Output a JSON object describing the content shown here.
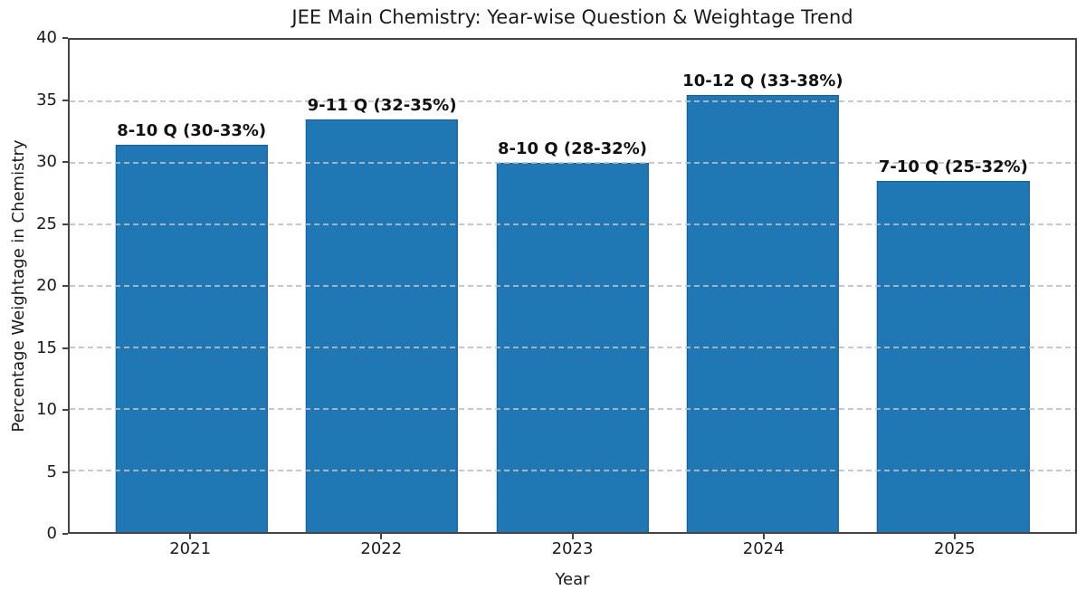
{
  "chart_data": {
    "type": "bar",
    "title": "JEE Main Chemistry: Year-wise Question & Weightage Trend",
    "xlabel": "Year",
    "ylabel": "Percentage Weightage in Chemistry",
    "categories": [
      "2021",
      "2022",
      "2023",
      "2024",
      "2025"
    ],
    "values": [
      31.5,
      33.5,
      30,
      35.5,
      28.5
    ],
    "bar_labels": [
      "8-10 Q (30-33%)",
      "9-11 Q (32-35%)",
      "8-10 Q (28-32%)",
      "10-12 Q (33-38%)",
      "7-10 Q (25-32%)"
    ],
    "yticks": [
      0,
      5,
      10,
      15,
      20,
      25,
      30,
      35,
      40
    ],
    "ylim": [
      0,
      40
    ],
    "grid": "horizontal-dashed",
    "legend": "none",
    "colors": {
      "bar_fill": "#1f77b4",
      "bar_edge": "#1160a0",
      "grid": "#bebebe",
      "spine": "#454545",
      "text": "#1a1a1a"
    }
  }
}
